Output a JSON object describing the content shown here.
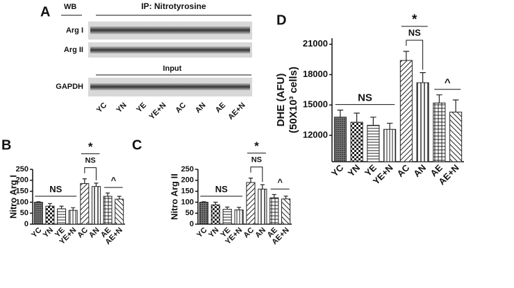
{
  "blot": {
    "panel": "A",
    "wb_label": "WB",
    "ip_label": "IP: Nitrotyrosine",
    "rows": [
      "Arg I",
      "Arg II"
    ],
    "input_label": "Input",
    "loading_row": "GAPDH",
    "lanes": [
      "YC",
      "YN",
      "YE",
      "YE+N",
      "AC",
      "AN",
      "AE",
      "AE+N"
    ]
  },
  "chart_data": [
    {
      "type": "bar",
      "panel": "B",
      "y_label": "Nitro  Arg I",
      "color": "#222222",
      "categories": [
        "YC",
        "YN",
        "YE",
        "YE+N",
        "AC",
        "AN",
        "AE",
        "AE+N"
      ],
      "values": [
        100,
        82,
        70,
        63,
        185,
        172,
        127,
        114
      ],
      "errors": [
        2,
        12,
        12,
        12,
        22,
        15,
        15,
        13
      ],
      "ylim": [
        0,
        250
      ],
      "yticks": [
        0,
        50,
        100,
        150,
        200,
        250
      ],
      "annotations": [
        "NS",
        "*",
        "NS",
        "^"
      ]
    },
    {
      "type": "bar",
      "panel": "C",
      "y_label": "Nitro  Arg II",
      "color": "#222222",
      "categories": [
        "YC",
        "YN",
        "YE",
        "YE+N",
        "AC",
        "AN",
        "AE",
        "AE+N"
      ],
      "values": [
        100,
        88,
        68,
        65,
        190,
        160,
        120,
        115
      ],
      "errors": [
        2,
        12,
        10,
        12,
        20,
        20,
        15,
        13
      ],
      "ylim": [
        0,
        250
      ],
      "yticks": [
        0,
        50,
        100,
        150,
        200,
        250
      ],
      "annotations": [
        "NS",
        "*",
        "NS",
        "^"
      ]
    },
    {
      "type": "bar",
      "panel": "D",
      "y_label": [
        "DHE (AFU)",
        "(50X10³ cells)"
      ],
      "color": "#222222",
      "categories": [
        "YC",
        "YN",
        "YE",
        "YE+N",
        "AC",
        "AN",
        "AE",
        "AE+N"
      ],
      "values": [
        13800,
        13300,
        13000,
        12600,
        19400,
        17200,
        15200,
        14300
      ],
      "errors": [
        700,
        900,
        800,
        600,
        900,
        1000,
        800,
        1200
      ],
      "ylim": [
        9400,
        21600
      ],
      "yticks": [
        12000,
        15000,
        18000,
        21000
      ],
      "annotations": [
        "NS",
        "*",
        "NS",
        "^"
      ]
    }
  ]
}
